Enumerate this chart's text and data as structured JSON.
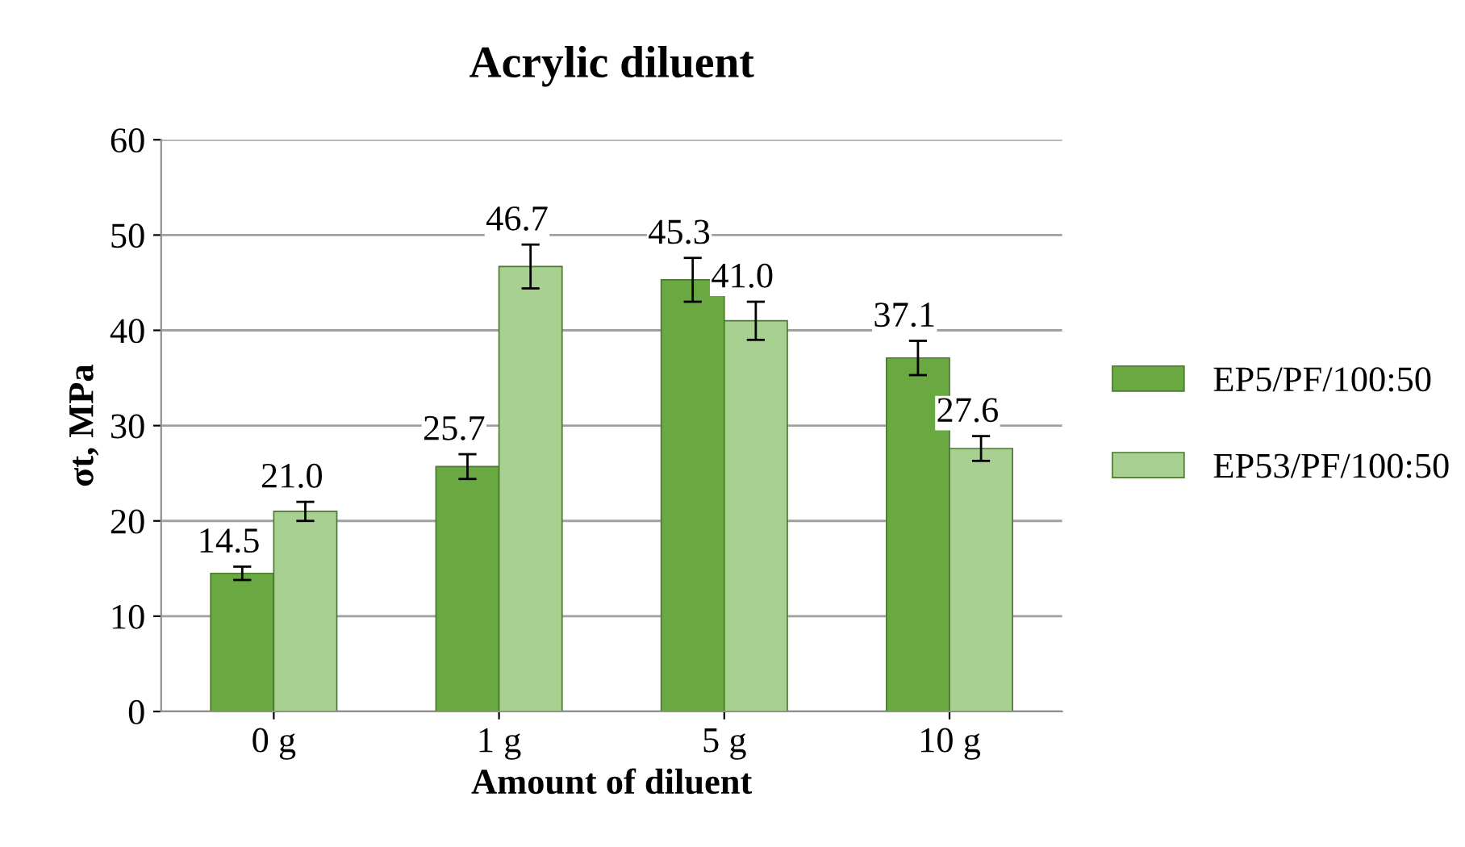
{
  "chart_data": {
    "type": "bar",
    "title": "Acrylic diluent",
    "xlabel": "Amount of diluent",
    "ylabel": "σt, MPa",
    "categories": [
      "0 g",
      "1 g",
      "5 g",
      "10 g"
    ],
    "series": [
      {
        "name": "EP5/PF/100:50",
        "color": "#6aa842",
        "values": [
          14.5,
          25.7,
          45.3,
          37.1
        ],
        "errors": [
          0.7,
          1.3,
          2.3,
          1.8
        ],
        "value_labels": [
          "14.5",
          "25.7",
          "45.3",
          "37.1"
        ]
      },
      {
        "name": "EP53/PF/100:50",
        "color": "#a8d191",
        "values": [
          21.0,
          46.7,
          41.0,
          27.6
        ],
        "errors": [
          1.0,
          2.3,
          2.0,
          1.3
        ],
        "value_labels": [
          "21.0",
          "46.7",
          "41.0",
          "27.6"
        ]
      }
    ],
    "ylim": [
      0,
      60
    ],
    "yticks": [
      0,
      10,
      20,
      30,
      40,
      50,
      60
    ],
    "grid": "y",
    "legend": "right"
  }
}
